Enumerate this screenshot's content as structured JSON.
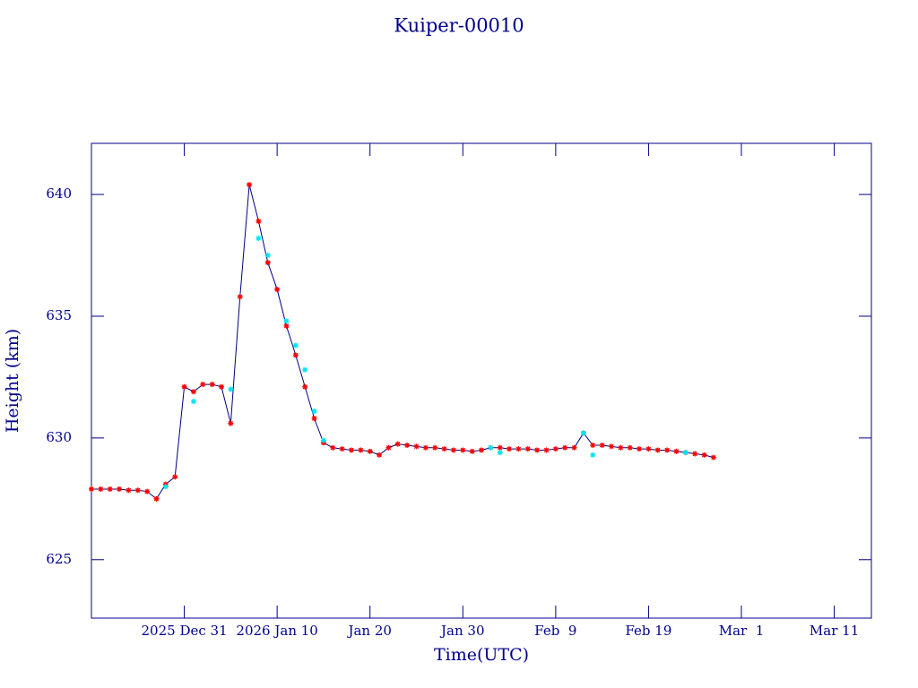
{
  "chart_data": {
    "type": "line",
    "title": "Kuiper-00010",
    "x_label": "Time(UTC)",
    "y_label": "Height (km)",
    "xlim": [
      "2025-12-21",
      "2026-03-15"
    ],
    "xticks": [
      {
        "value": "2025-12-31",
        "label": "2025 Dec 31"
      },
      {
        "value": "2026-01-10",
        "label": "2026 Jan 10"
      },
      {
        "value": "2026-01-20",
        "label": "Jan 20"
      },
      {
        "value": "2026-01-30",
        "label": "Jan 30"
      },
      {
        "value": "2026-02-09",
        "label": "Feb  9"
      },
      {
        "value": "2026-02-19",
        "label": "Feb 19"
      },
      {
        "value": "2026-03-01",
        "label": "Mar  1"
      },
      {
        "value": "2026-03-11",
        "label": "Mar 11"
      }
    ],
    "ylim": [
      622.6,
      642.1
    ],
    "yticks": [
      625,
      630,
      635,
      640
    ],
    "axis_color": "#00008b",
    "series": [
      {
        "color": "#000080",
        "marker_color": "#ff0000",
        "line": true,
        "x": [
          "2025-12-21",
          "2025-12-22",
          "2025-12-23",
          "2025-12-24",
          "2025-12-25",
          "2025-12-26",
          "2025-12-27",
          "2025-12-28",
          "2025-12-29",
          "2025-12-30",
          "2025-12-31",
          "2026-01-01",
          "2026-01-02",
          "2026-01-03",
          "2026-01-04",
          "2026-01-05",
          "2026-01-06",
          "2026-01-07",
          "2026-01-08",
          "2026-01-09",
          "2026-01-10",
          "2026-01-11",
          "2026-01-12",
          "2026-01-13",
          "2026-01-14",
          "2026-01-15",
          "2026-01-16",
          "2026-01-17",
          "2026-01-18",
          "2026-01-19",
          "2026-01-20",
          "2026-01-21",
          "2026-01-22",
          "2026-01-23",
          "2026-01-24",
          "2026-01-25",
          "2026-01-26",
          "2026-01-27",
          "2026-01-28",
          "2026-01-29",
          "2026-01-30",
          "2026-01-31",
          "2026-02-01",
          "2026-02-02",
          "2026-02-03",
          "2026-02-04",
          "2026-02-05",
          "2026-02-06",
          "2026-02-07",
          "2026-02-08",
          "2026-02-09",
          "2026-02-10",
          "2026-02-11",
          "2026-02-12",
          "2026-02-13",
          "2026-02-14",
          "2026-02-15",
          "2026-02-16",
          "2026-02-17",
          "2026-02-18",
          "2026-02-19",
          "2026-02-20",
          "2026-02-21",
          "2026-02-22",
          "2026-02-23",
          "2026-02-24",
          "2026-02-25",
          "2026-02-26"
        ],
        "values": [
          627.9,
          627.9,
          627.9,
          627.9,
          627.85,
          627.85,
          627.8,
          627.5,
          628.1,
          628.4,
          632.1,
          631.9,
          632.2,
          632.2,
          632.1,
          630.6,
          635.8,
          640.4,
          638.9,
          637.2,
          636.1,
          634.6,
          633.4,
          632.1,
          630.8,
          629.8,
          629.6,
          629.55,
          629.5,
          629.5,
          629.45,
          629.3,
          629.6,
          629.75,
          629.7,
          629.65,
          629.6,
          629.6,
          629.55,
          629.5,
          629.5,
          629.45,
          629.5,
          629.6,
          629.6,
          629.55,
          629.55,
          629.55,
          629.5,
          629.5,
          629.55,
          629.6,
          629.6,
          630.2,
          629.7,
          629.7,
          629.65,
          629.6,
          629.6,
          629.55,
          629.55,
          629.5,
          629.5,
          629.45,
          629.4,
          629.35,
          629.3,
          629.2
        ]
      },
      {
        "color": "#00e5ee",
        "marker_color": "#00e5ee",
        "line": false,
        "x": [
          "2025-12-29",
          "2026-01-01",
          "2026-01-05",
          "2026-01-08",
          "2026-01-09",
          "2026-01-11",
          "2026-01-12",
          "2026-01-13",
          "2026-01-14",
          "2026-01-15",
          "2026-02-02",
          "2026-02-03",
          "2026-02-12",
          "2026-02-13",
          "2026-02-23"
        ],
        "values": [
          628.0,
          631.5,
          632.0,
          638.2,
          637.5,
          634.8,
          633.8,
          632.8,
          631.1,
          629.9,
          629.6,
          629.4,
          630.2,
          629.3,
          629.4
        ]
      }
    ]
  }
}
